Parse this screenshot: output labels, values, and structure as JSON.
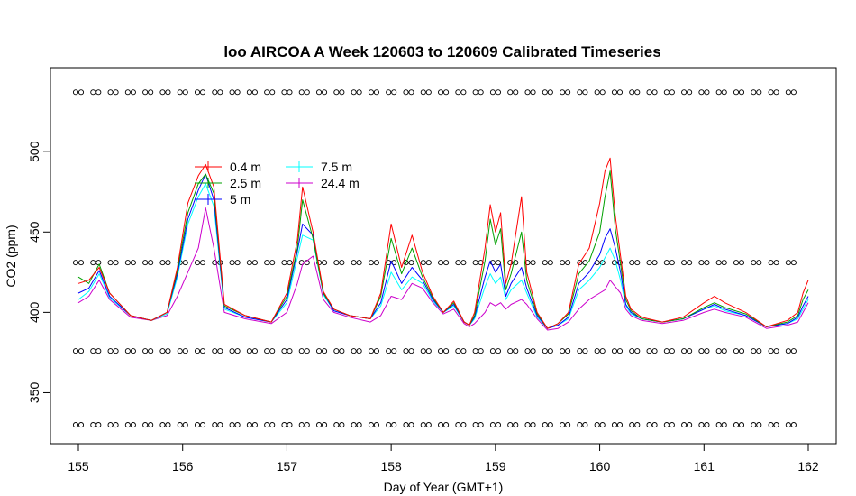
{
  "chart_data": {
    "type": "line",
    "title": "loo AIRCOA A  Week 120603 to 120609  Calibrated Timeseries",
    "xlabel": "Day of Year (GMT+1)",
    "ylabel": "CO2 (ppm)",
    "xlim": [
      155,
      162
    ],
    "ylim": [
      325,
      545
    ],
    "x_ticks": [
      155,
      156,
      157,
      158,
      159,
      160,
      161,
      162
    ],
    "y_ticks": [
      350,
      400,
      450,
      500
    ],
    "grid": false,
    "legend_position": "top-left",
    "legend": [
      {
        "name": "0.4 m",
        "color": "#ff0000"
      },
      {
        "name": "2.5 m",
        "color": "#00a000"
      },
      {
        "name": "5 m",
        "color": "#0000ff"
      },
      {
        "name": "7.5 m",
        "color": "#00ffff"
      },
      {
        "name": "24.4 m",
        "color": "#cc00cc"
      }
    ],
    "series": [
      {
        "name": "0.4 m",
        "color": "#ff0000",
        "x": [
          155.0,
          155.1,
          155.2,
          155.3,
          155.5,
          155.7,
          155.85,
          155.95,
          156.05,
          156.15,
          156.22,
          156.3,
          156.4,
          156.6,
          156.85,
          157.0,
          157.1,
          157.15,
          157.25,
          157.35,
          157.45,
          157.6,
          157.8,
          157.9,
          158.0,
          158.1,
          158.2,
          158.3,
          158.4,
          158.5,
          158.6,
          158.7,
          158.75,
          158.8,
          158.9,
          158.95,
          159.0,
          159.05,
          159.1,
          159.15,
          159.25,
          159.3,
          159.4,
          159.5,
          159.6,
          159.7,
          159.8,
          159.9,
          160.0,
          160.05,
          160.1,
          160.15,
          160.2,
          160.25,
          160.3,
          160.4,
          160.6,
          160.8,
          161.0,
          161.1,
          161.2,
          161.4,
          161.6,
          161.8,
          161.9,
          161.95,
          162.0
        ],
        "y": [
          418,
          420,
          428,
          412,
          398,
          395,
          400,
          428,
          468,
          485,
          492,
          478,
          405,
          398,
          394,
          412,
          445,
          478,
          450,
          413,
          402,
          398,
          396,
          412,
          455,
          428,
          448,
          425,
          410,
          400,
          407,
          394,
          392,
          400,
          440,
          467,
          450,
          462,
          418,
          430,
          472,
          425,
          400,
          390,
          393,
          400,
          430,
          440,
          468,
          488,
          496,
          460,
          435,
          410,
          402,
          397,
          394,
          397,
          406,
          410,
          406,
          400,
          391,
          395,
          400,
          412,
          420
        ]
      },
      {
        "name": "2.5 m",
        "color": "#00a000",
        "x": [
          155.0,
          155.1,
          155.2,
          155.3,
          155.5,
          155.7,
          155.85,
          155.95,
          156.05,
          156.15,
          156.22,
          156.3,
          156.4,
          156.6,
          156.85,
          157.0,
          157.1,
          157.15,
          157.25,
          157.35,
          157.45,
          157.6,
          157.8,
          157.9,
          158.0,
          158.1,
          158.2,
          158.3,
          158.4,
          158.5,
          158.6,
          158.7,
          158.75,
          158.8,
          158.9,
          158.95,
          159.0,
          159.05,
          159.1,
          159.15,
          159.25,
          159.3,
          159.4,
          159.5,
          159.6,
          159.7,
          159.8,
          159.9,
          160.0,
          160.05,
          160.1,
          160.15,
          160.2,
          160.25,
          160.3,
          160.4,
          160.6,
          160.8,
          161.0,
          161.1,
          161.2,
          161.4,
          161.6,
          161.8,
          161.9,
          161.95,
          162.0
        ],
        "y": [
          422,
          418,
          430,
          412,
          398,
          395,
          400,
          426,
          462,
          480,
          486,
          474,
          404,
          398,
          394,
          410,
          440,
          470,
          446,
          412,
          402,
          398,
          396,
          410,
          446,
          424,
          440,
          422,
          409,
          400,
          406,
          394,
          392,
          398,
          432,
          458,
          442,
          452,
          414,
          424,
          450,
          420,
          399,
          390,
          393,
          399,
          424,
          432,
          450,
          472,
          488,
          452,
          430,
          408,
          401,
          396,
          394,
          396,
          403,
          406,
          403,
          399,
          391,
          394,
          398,
          408,
          414
        ]
      },
      {
        "name": "5 m",
        "color": "#0000ff",
        "x": [
          155.0,
          155.1,
          155.2,
          155.3,
          155.5,
          155.7,
          155.85,
          155.95,
          156.05,
          156.15,
          156.22,
          156.3,
          156.4,
          156.6,
          156.85,
          157.0,
          157.1,
          157.15,
          157.25,
          157.35,
          157.45,
          157.6,
          157.8,
          157.9,
          158.0,
          158.1,
          158.2,
          158.3,
          158.4,
          158.5,
          158.6,
          158.7,
          158.75,
          158.8,
          158.9,
          158.95,
          159.0,
          159.05,
          159.1,
          159.15,
          159.25,
          159.3,
          159.4,
          159.5,
          159.6,
          159.7,
          159.8,
          159.9,
          160.0,
          160.05,
          160.1,
          160.15,
          160.2,
          160.25,
          160.3,
          160.4,
          160.6,
          160.8,
          161.0,
          161.1,
          161.2,
          161.4,
          161.6,
          161.8,
          161.9,
          161.95,
          162.0
        ],
        "y": [
          412,
          415,
          426,
          410,
          398,
          395,
          400,
          424,
          458,
          476,
          486,
          470,
          403,
          397,
          394,
          408,
          438,
          455,
          448,
          412,
          401,
          398,
          396,
          406,
          432,
          418,
          428,
          420,
          408,
          400,
          405,
          394,
          392,
          397,
          422,
          432,
          425,
          430,
          410,
          418,
          428,
          415,
          398,
          390,
          392,
          397,
          418,
          425,
          436,
          446,
          452,
          440,
          425,
          405,
          400,
          396,
          394,
          396,
          402,
          405,
          402,
          398,
          391,
          393,
          397,
          404,
          410
        ]
      },
      {
        "name": "7.5 m",
        "color": "#00ffff",
        "x": [
          155.0,
          155.1,
          155.2,
          155.3,
          155.5,
          155.7,
          155.85,
          155.95,
          156.05,
          156.15,
          156.22,
          156.3,
          156.4,
          156.6,
          156.85,
          157.0,
          157.1,
          157.15,
          157.25,
          157.35,
          157.45,
          157.6,
          157.8,
          157.9,
          158.0,
          158.1,
          158.2,
          158.3,
          158.4,
          158.5,
          158.6,
          158.7,
          158.75,
          158.8,
          158.9,
          158.95,
          159.0,
          159.05,
          159.1,
          159.15,
          159.25,
          159.3,
          159.4,
          159.5,
          159.6,
          159.7,
          159.8,
          159.9,
          160.0,
          160.05,
          160.1,
          160.15,
          160.2,
          160.25,
          160.3,
          160.4,
          160.6,
          160.8,
          161.0,
          161.1,
          161.2,
          161.4,
          161.6,
          161.8,
          161.9,
          161.95,
          162.0
        ],
        "y": [
          408,
          413,
          424,
          409,
          398,
          395,
          399,
          422,
          455,
          472,
          480,
          466,
          402,
          397,
          394,
          406,
          434,
          448,
          445,
          411,
          401,
          398,
          396,
          404,
          425,
          414,
          422,
          418,
          407,
          400,
          404,
          394,
          392,
          396,
          416,
          424,
          418,
          422,
          408,
          414,
          420,
          412,
          397,
          390,
          392,
          396,
          414,
          420,
          428,
          434,
          440,
          432,
          420,
          404,
          399,
          396,
          394,
          396,
          402,
          404,
          401,
          398,
          391,
          393,
          396,
          402,
          408
        ]
      },
      {
        "name": "24.4 m",
        "color": "#cc00cc",
        "x": [
          155.0,
          155.1,
          155.2,
          155.3,
          155.5,
          155.7,
          155.85,
          155.95,
          156.05,
          156.15,
          156.22,
          156.3,
          156.4,
          156.6,
          156.85,
          157.0,
          157.1,
          157.15,
          157.25,
          157.35,
          157.45,
          157.6,
          157.8,
          157.9,
          158.0,
          158.1,
          158.2,
          158.3,
          158.4,
          158.5,
          158.6,
          158.7,
          158.75,
          158.8,
          158.9,
          158.95,
          159.0,
          159.05,
          159.1,
          159.15,
          159.25,
          159.3,
          159.4,
          159.5,
          159.6,
          159.7,
          159.8,
          159.9,
          160.0,
          160.05,
          160.1,
          160.15,
          160.2,
          160.25,
          160.3,
          160.4,
          160.6,
          160.8,
          161.0,
          161.1,
          161.2,
          161.4,
          161.6,
          161.8,
          161.9,
          161.95,
          162.0
        ],
        "y": [
          406,
          410,
          420,
          408,
          397,
          395,
          398,
          410,
          425,
          440,
          465,
          440,
          400,
          396,
          393,
          400,
          418,
          430,
          435,
          408,
          400,
          397,
          394,
          398,
          410,
          408,
          418,
          415,
          406,
          399,
          402,
          393,
          391,
          393,
          400,
          406,
          404,
          406,
          402,
          405,
          408,
          405,
          396,
          389,
          390,
          394,
          402,
          408,
          412,
          414,
          420,
          416,
          412,
          402,
          398,
          395,
          393,
          395,
          400,
          402,
          400,
          397,
          390,
          392,
          394,
          400,
          406
        ]
      }
    ],
    "marker_rows": {
      "marker": "open-circle-pair",
      "y_levels": [
        330,
        376,
        431,
        537
      ],
      "x_start": 155.0,
      "x_end": 162.0,
      "x_step": 0.1667
    }
  }
}
